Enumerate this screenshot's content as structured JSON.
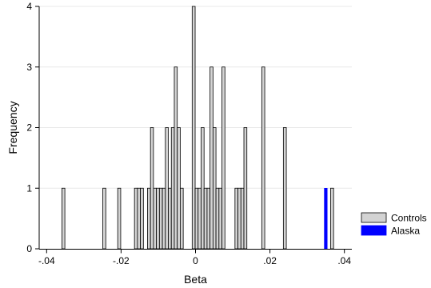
{
  "chart_data": {
    "type": "bar",
    "subtype": "histogram",
    "xlabel": "Beta",
    "ylabel": "Frequency",
    "xlim": [
      -0.042,
      0.042
    ],
    "ylim": [
      0,
      4
    ],
    "x_ticks": [
      -0.04,
      -0.02,
      0,
      0.02,
      0.04
    ],
    "x_tick_labels": [
      "-.04",
      "-.02",
      "0",
      ".02",
      ".04"
    ],
    "y_ticks": [
      0,
      1,
      2,
      3,
      4
    ],
    "y_tick_labels": [
      "0",
      "1",
      "2",
      "3",
      "4"
    ],
    "bin_width": 0.0008,
    "grid": "horizontal",
    "legend_position": "bottom-right",
    "series": [
      {
        "name": "Controls",
        "color": "#d3d3d3",
        "bins": [
          {
            "x": -0.0355,
            "count": 1
          },
          {
            "x": -0.0245,
            "count": 1
          },
          {
            "x": -0.0205,
            "count": 1
          },
          {
            "x": -0.016,
            "count": 1
          },
          {
            "x": -0.0152,
            "count": 1
          },
          {
            "x": -0.0144,
            "count": 1
          },
          {
            "x": -0.0125,
            "count": 1
          },
          {
            "x": -0.0117,
            "count": 2
          },
          {
            "x": -0.0109,
            "count": 1
          },
          {
            "x": -0.0101,
            "count": 1
          },
          {
            "x": -0.0093,
            "count": 1
          },
          {
            "x": -0.0085,
            "count": 1
          },
          {
            "x": -0.0077,
            "count": 2
          },
          {
            "x": -0.0069,
            "count": 1
          },
          {
            "x": -0.0061,
            "count": 2
          },
          {
            "x": -0.0053,
            "count": 3
          },
          {
            "x": -0.0045,
            "count": 2
          },
          {
            "x": -0.0037,
            "count": 1
          },
          {
            "x": -0.0005,
            "count": 4
          },
          {
            "x": 0.0003,
            "count": 1
          },
          {
            "x": 0.0011,
            "count": 1
          },
          {
            "x": 0.0019,
            "count": 2
          },
          {
            "x": 0.0027,
            "count": 1
          },
          {
            "x": 0.0035,
            "count": 1
          },
          {
            "x": 0.0043,
            "count": 3
          },
          {
            "x": 0.0051,
            "count": 2
          },
          {
            "x": 0.0059,
            "count": 1
          },
          {
            "x": 0.0067,
            "count": 1
          },
          {
            "x": 0.0075,
            "count": 3
          },
          {
            "x": 0.011,
            "count": 1
          },
          {
            "x": 0.0118,
            "count": 1
          },
          {
            "x": 0.0126,
            "count": 1
          },
          {
            "x": 0.0134,
            "count": 2
          },
          {
            "x": 0.0182,
            "count": 3
          },
          {
            "x": 0.024,
            "count": 2
          },
          {
            "x": 0.0367,
            "count": 1
          }
        ]
      },
      {
        "name": "Alaska",
        "color": "#0000ff",
        "bins": [
          {
            "x": 0.035,
            "count": 1
          }
        ]
      }
    ]
  }
}
